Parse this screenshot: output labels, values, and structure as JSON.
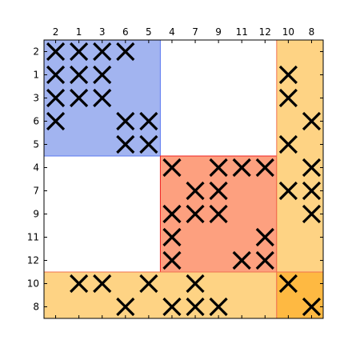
{
  "chart_data": {
    "type": "heatmap",
    "title": "",
    "xlabel": "",
    "ylabel": "",
    "labels": [
      "2",
      "1",
      "3",
      "6",
      "5",
      "4",
      "7",
      "9",
      "11",
      "12",
      "10",
      "8"
    ],
    "grid": false,
    "x_tick_position": "top",
    "marker": "x",
    "marker_color": "#000000",
    "blocks": [
      {
        "rows": [
          0,
          4
        ],
        "cols": [
          0,
          4
        ],
        "fill": "#a2b4f0",
        "edge": "#5a78f0"
      },
      {
        "rows": [
          5,
          9
        ],
        "cols": [
          5,
          9
        ],
        "fill": "#fda07f",
        "edge": "#f02020"
      },
      {
        "rows": [
          10,
          11
        ],
        "cols": [
          0,
          11
        ],
        "fill": "#fed384",
        "edge": "#f07050"
      },
      {
        "rows": [
          0,
          11
        ],
        "cols": [
          10,
          11
        ],
        "fill": "#fed384",
        "edge": "#f07050"
      },
      {
        "rows": [
          10,
          11
        ],
        "cols": [
          10,
          11
        ],
        "fill": "#feb942",
        "edge": "#f07050"
      }
    ],
    "cells": [
      [
        0,
        0
      ],
      [
        0,
        1
      ],
      [
        0,
        2
      ],
      [
        0,
        3
      ],
      [
        1,
        0
      ],
      [
        1,
        1
      ],
      [
        1,
        2
      ],
      [
        1,
        10
      ],
      [
        2,
        0
      ],
      [
        2,
        1
      ],
      [
        2,
        2
      ],
      [
        2,
        10
      ],
      [
        3,
        0
      ],
      [
        3,
        3
      ],
      [
        3,
        4
      ],
      [
        3,
        11
      ],
      [
        4,
        3
      ],
      [
        4,
        4
      ],
      [
        4,
        10
      ],
      [
        5,
        5
      ],
      [
        5,
        7
      ],
      [
        5,
        8
      ],
      [
        5,
        9
      ],
      [
        5,
        11
      ],
      [
        6,
        6
      ],
      [
        6,
        7
      ],
      [
        6,
        10
      ],
      [
        6,
        11
      ],
      [
        7,
        5
      ],
      [
        7,
        6
      ],
      [
        7,
        7
      ],
      [
        7,
        11
      ],
      [
        8,
        5
      ],
      [
        8,
        9
      ],
      [
        9,
        5
      ],
      [
        9,
        8
      ],
      [
        9,
        9
      ],
      [
        10,
        1
      ],
      [
        10,
        2
      ],
      [
        10,
        4
      ],
      [
        10,
        6
      ],
      [
        10,
        10
      ],
      [
        11,
        3
      ],
      [
        11,
        5
      ],
      [
        11,
        6
      ],
      [
        11,
        7
      ],
      [
        11,
        11
      ]
    ]
  }
}
